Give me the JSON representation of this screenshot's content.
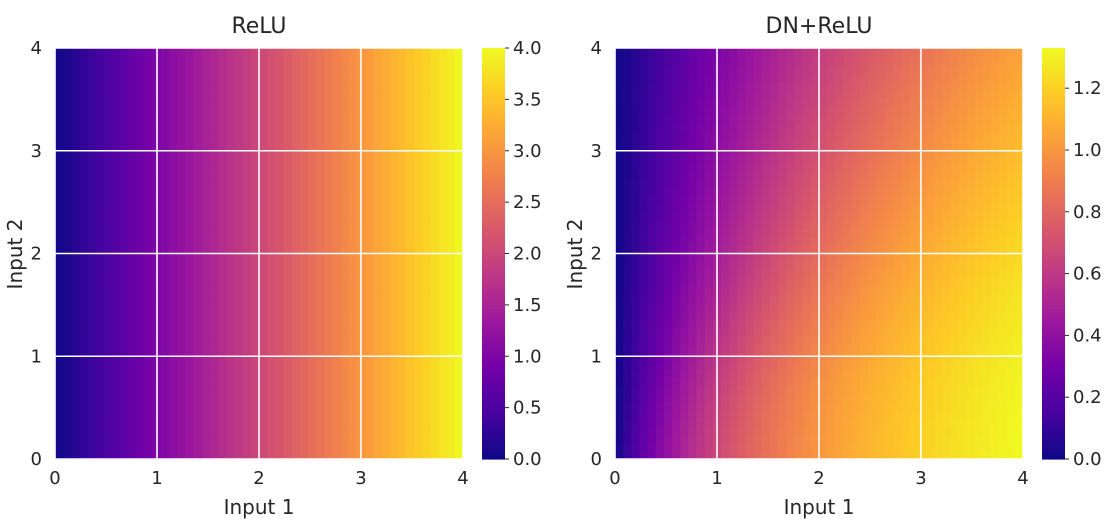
{
  "chart_data": [
    {
      "type": "heatmap",
      "title": "ReLU",
      "xlabel": "Input 1",
      "ylabel": "Input 2",
      "xlim": [
        0,
        4
      ],
      "ylim": [
        0,
        4
      ],
      "xticks": [
        "0",
        "1",
        "2",
        "3",
        "4"
      ],
      "yticks": [
        "0",
        "1",
        "2",
        "3",
        "4"
      ],
      "grid": true,
      "colormap": "plasma",
      "function": "relu",
      "colorbar": {
        "min": 0.0,
        "max": 4.0,
        "ticks": [
          "0.0",
          "0.5",
          "1.0",
          "1.5",
          "2.0",
          "2.5",
          "3.0",
          "3.5",
          "4.0"
        ]
      }
    },
    {
      "type": "heatmap",
      "title": "DN+ReLU",
      "xlabel": "Input 1",
      "ylabel": "Input 2",
      "xlim": [
        0,
        4
      ],
      "ylim": [
        0,
        4
      ],
      "xticks": [
        "0",
        "1",
        "2",
        "3",
        "4"
      ],
      "yticks": [
        "0",
        "1",
        "2",
        "3",
        "4"
      ],
      "grid": true,
      "colormap": "plasma",
      "function": "divisive-normalization-relu",
      "colorbar": {
        "min": 0.0,
        "max": 1.33,
        "ticks": [
          "0.0",
          "0.2",
          "0.4",
          "0.6",
          "0.8",
          "1.0",
          "1.2"
        ]
      }
    }
  ],
  "colormap_stops": [
    "#0d0887",
    "#46039f",
    "#7201a8",
    "#9c179e",
    "#bd3786",
    "#d8576b",
    "#ed7953",
    "#fb9f3a",
    "#fdca26",
    "#f0f921"
  ]
}
